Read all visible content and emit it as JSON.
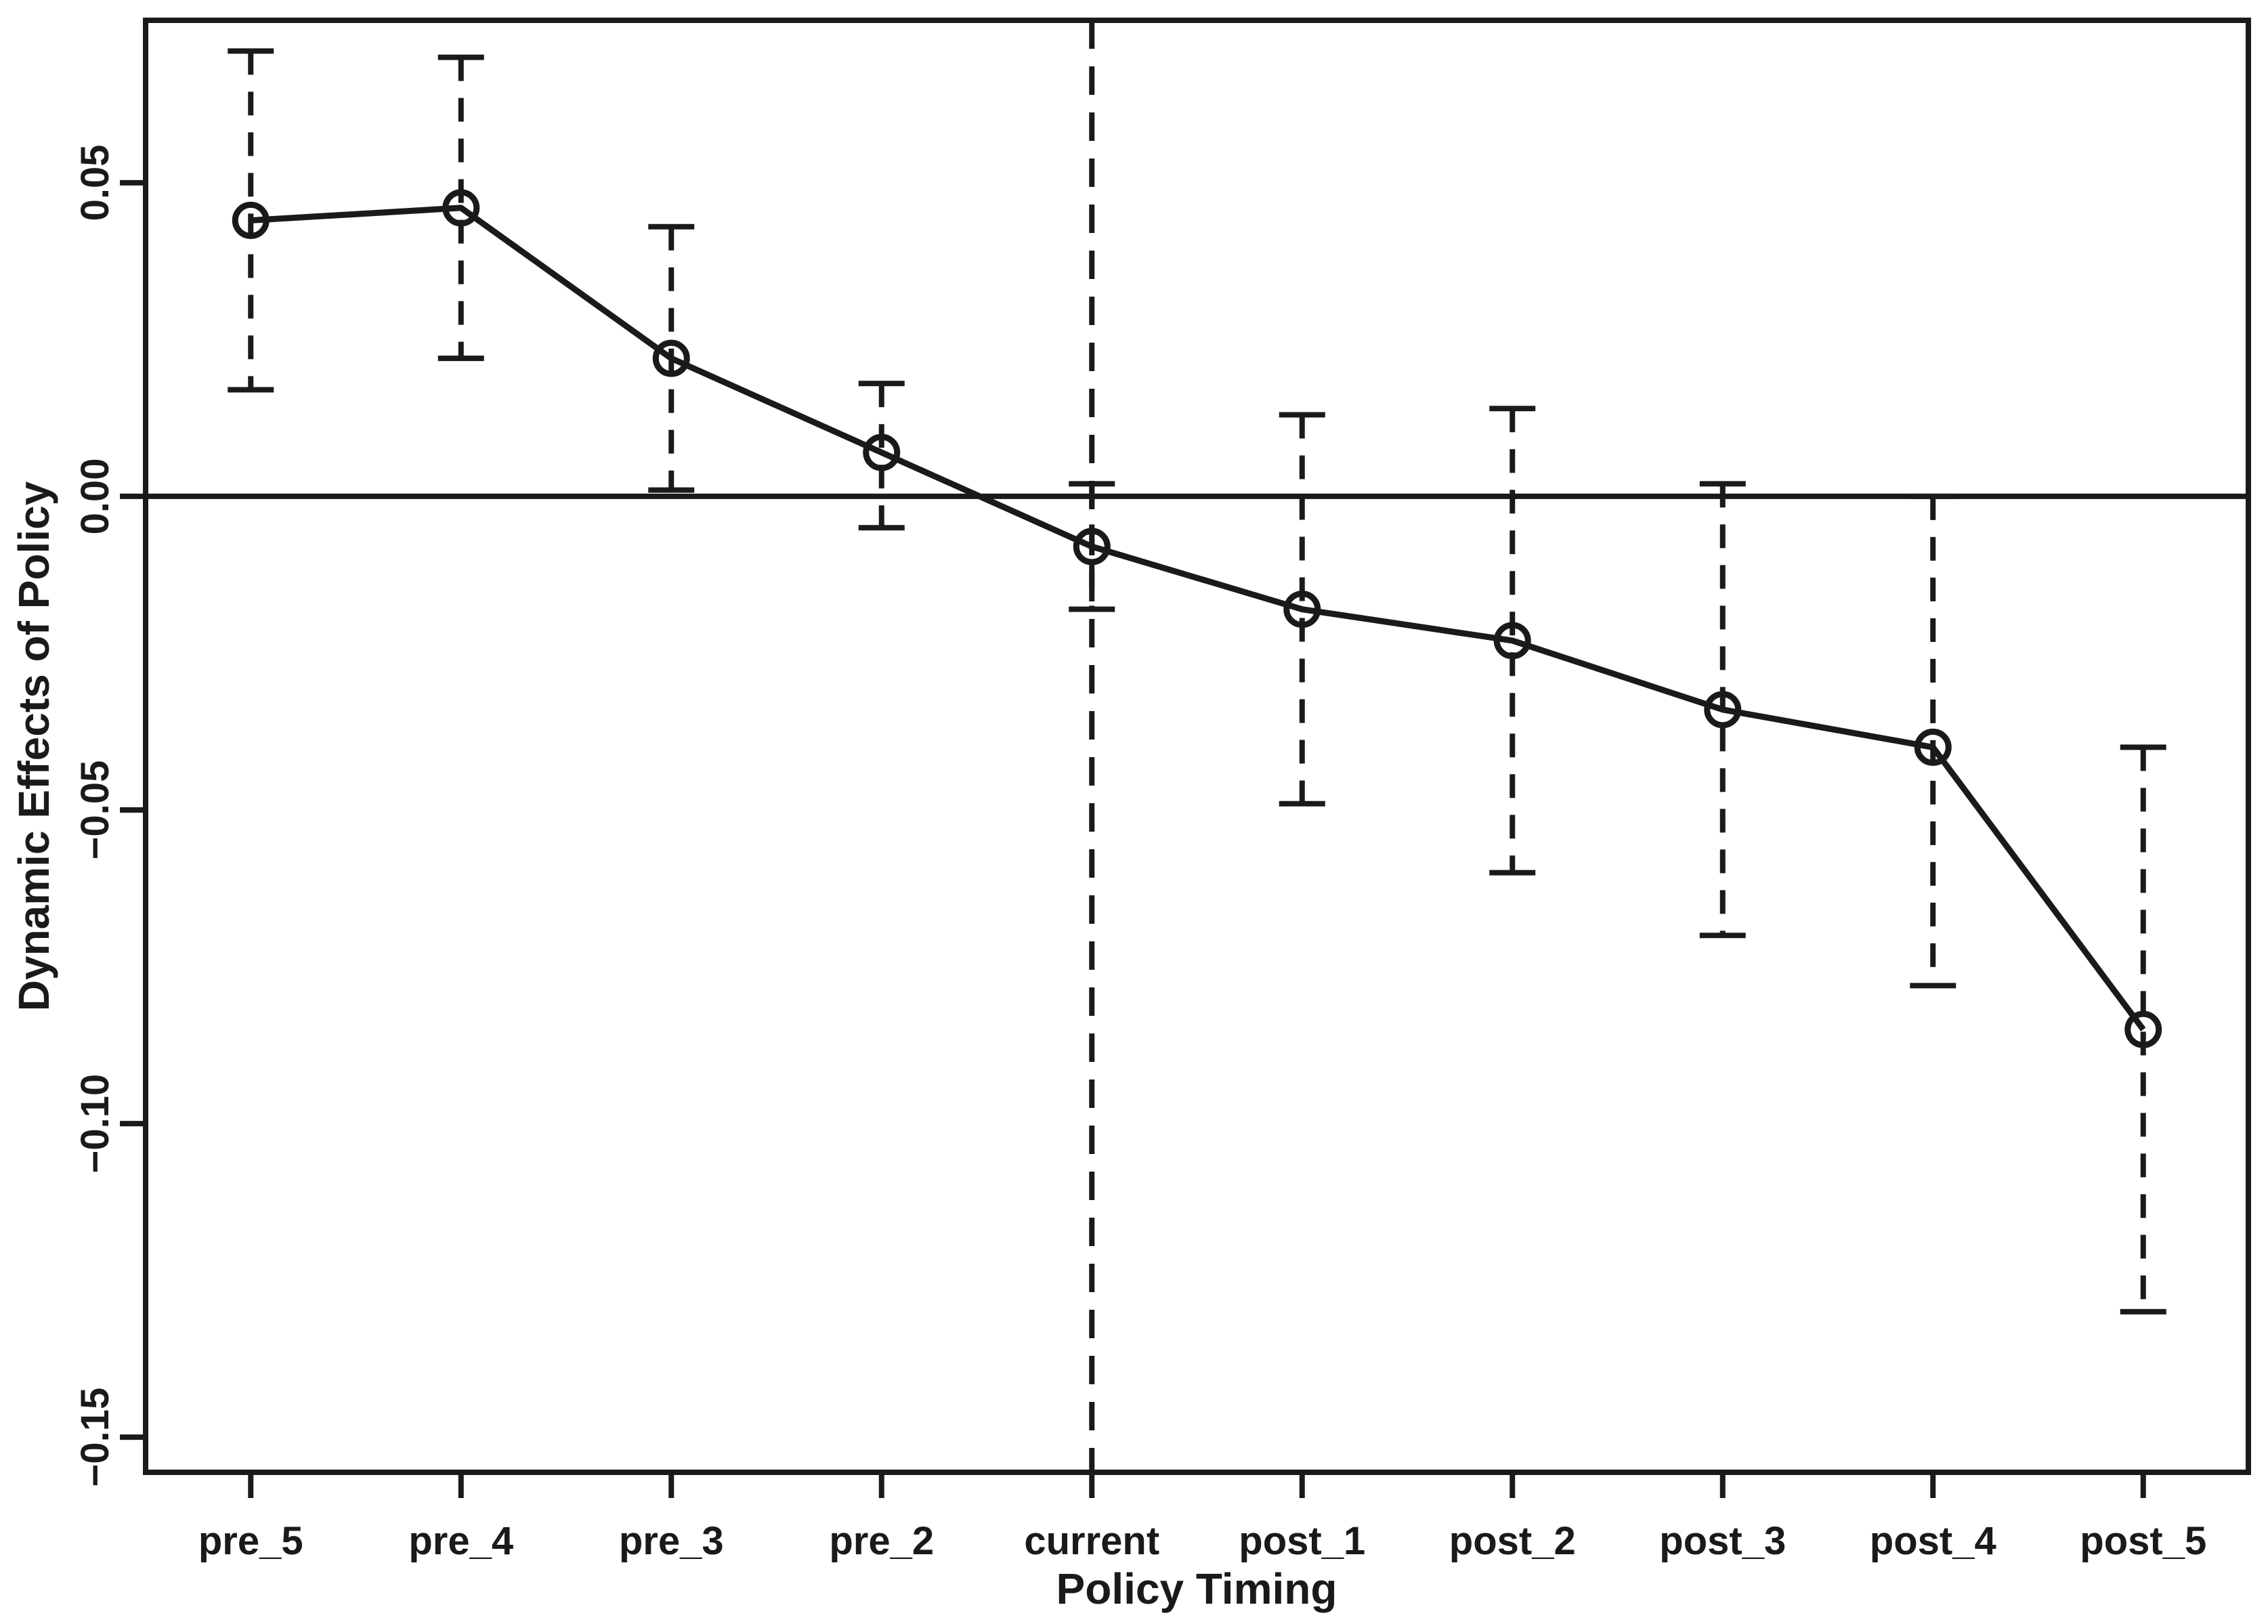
{
  "chart_data": {
    "type": "line",
    "subtype": "event-study-errorbar",
    "title": "",
    "xlabel": "Policy Timing",
    "ylabel": "Dynamic Effects of Policy",
    "categories": [
      "pre_5",
      "pre_4",
      "pre_3",
      "pre_2",
      "current",
      "post_1",
      "post_2",
      "post_3",
      "post_4",
      "post_5"
    ],
    "series": [
      {
        "name": "point estimate",
        "values": [
          0.044,
          0.046,
          0.022,
          0.007,
          -0.008,
          -0.018,
          -0.023,
          -0.034,
          -0.04,
          -0.085
        ]
      },
      {
        "name": "ci_lower",
        "values": [
          0.017,
          0.022,
          0.001,
          -0.005,
          -0.018,
          -0.049,
          -0.06,
          -0.07,
          -0.078,
          -0.13
        ]
      },
      {
        "name": "ci_upper",
        "values": [
          0.071,
          0.07,
          0.043,
          0.018,
          0.002,
          0.013,
          0.014,
          0.002,
          0.0,
          -0.04
        ]
      }
    ],
    "yticks": [
      0.05,
      0.0,
      -0.05,
      -0.1,
      -0.15
    ],
    "ytick_labels": [
      "0.05",
      "0.00",
      "−0.05",
      "−0.10",
      "−0.15"
    ],
    "ylim": [
      -0.1556,
      0.0759
    ],
    "grid": "off",
    "legend": "none",
    "reference_lines": {
      "hline_y": 0.0,
      "hline_style": "solid",
      "vline_at_category": "current",
      "vline_style": "dashed"
    },
    "marker": "open-circle",
    "errorbar_style": "dashed-with-caps",
    "line_color": "#1a1a1a",
    "background_color": "#ffffff"
  }
}
